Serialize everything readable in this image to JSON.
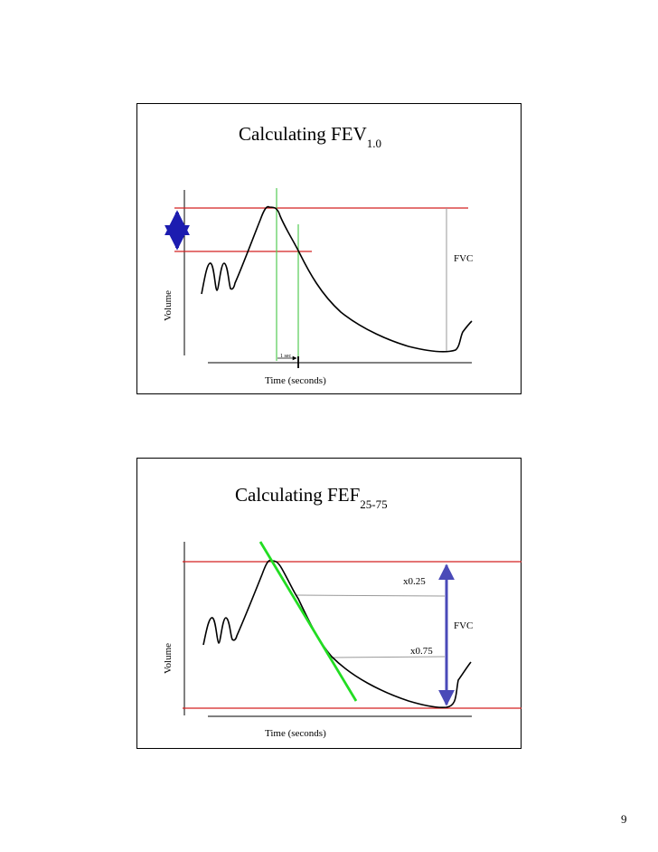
{
  "slides": [
    {
      "title_main": "Calculating FEV",
      "title_sub": "1.0",
      "ylabel": "Volume",
      "xlabel": "Time (seconds)",
      "fvc_label": "FVC",
      "interval_label": "1 sec"
    },
    {
      "title_main": "Calculating FEF",
      "title_sub": "25-75",
      "ylabel": "Volume",
      "xlabel": "Time (seconds)",
      "fvc_label": "FVC",
      "marker_25": "x0.25",
      "marker_75": "x0.75"
    }
  ],
  "page_number": "9",
  "colors": {
    "reference_line": "#d42020",
    "time_marker": "#55cc55",
    "slope_line": "#22dd22",
    "fev_arrow": "#1c1cb0",
    "fvc_arrow": "#4a4ab8",
    "curve": "#000000",
    "guide_line": "#9a9a9a"
  }
}
